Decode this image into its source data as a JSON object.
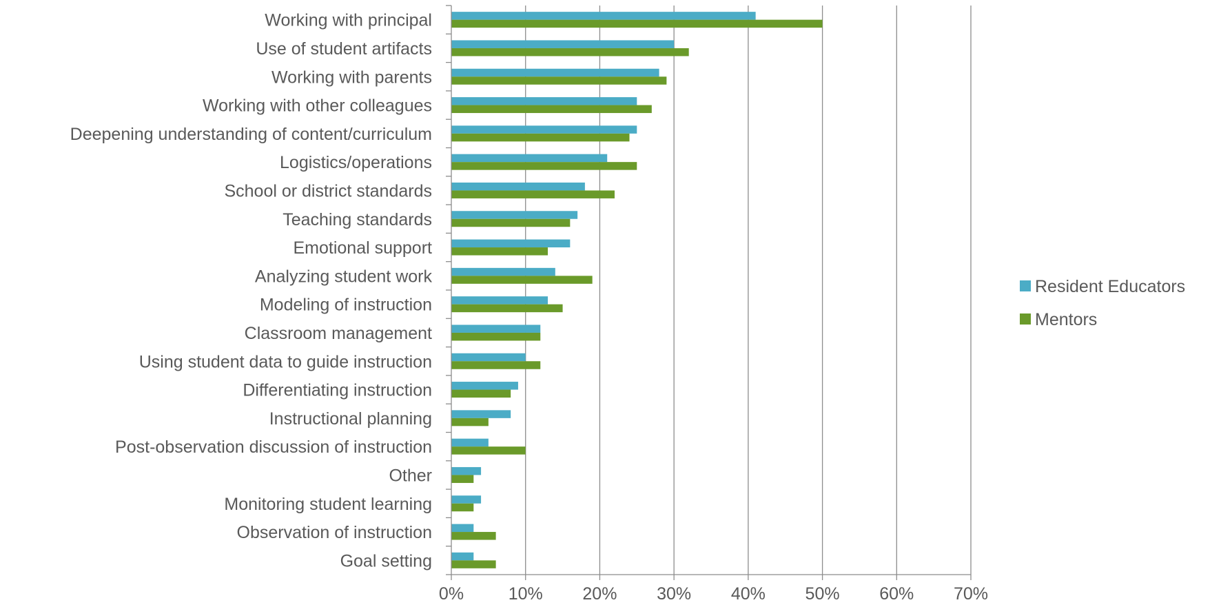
{
  "chart_data": {
    "type": "bar",
    "orientation": "horizontal",
    "categories": [
      "Working with principal",
      "Use of student artifacts",
      "Working with parents",
      "Working with other colleagues",
      "Deepening understanding of content/curriculum",
      "Logistics/operations",
      "School or district standards",
      "Teaching standards",
      "Emotional support",
      "Analyzing student work",
      "Modeling of instruction",
      "Classroom management",
      "Using student data to guide instruction",
      "Differentiating instruction",
      "Instructional planning",
      "Post-observation discussion of instruction",
      "Other",
      "Monitoring student learning",
      "Observation of instruction",
      "Goal setting"
    ],
    "series": [
      {
        "name": "Resident Educators",
        "color": "#4BACC6",
        "values": [
          41,
          30,
          28,
          25,
          25,
          21,
          18,
          17,
          16,
          14,
          13,
          12,
          10,
          9,
          8,
          5,
          4,
          4,
          3,
          3
        ]
      },
      {
        "name": "Mentors",
        "color": "#6A9A2A",
        "values": [
          50,
          32,
          29,
          27,
          24,
          25,
          22,
          16,
          13,
          19,
          15,
          12,
          12,
          8,
          5,
          10,
          3,
          3,
          6,
          6
        ]
      }
    ],
    "xlim": [
      0,
      70
    ],
    "xticks": [
      0,
      10,
      20,
      30,
      40,
      50,
      60,
      70
    ],
    "tick_format": "percent",
    "gridlines": "vertical",
    "legend_position": "right",
    "title": "",
    "xlabel": "",
    "ylabel": ""
  }
}
